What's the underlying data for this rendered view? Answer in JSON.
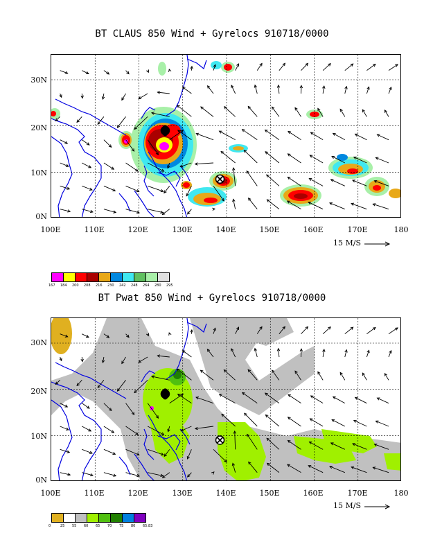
{
  "panels": [
    {
      "title": "BT CLAUS 850 Wind + Gyrelocs 910718/0000",
      "y_labels": [
        "30N",
        "20N",
        "10N",
        "0N"
      ],
      "x_labels": [
        "100E",
        "110E",
        "120E",
        "130E",
        "140E",
        "150E",
        "160E",
        "170E",
        "180"
      ],
      "scale_label": "15 M/S",
      "gyrelocs": [
        {
          "lon": 126,
          "lat": 19
        },
        {
          "lon": 138.5,
          "lat": 8.5
        }
      ],
      "legend": {
        "colors": [
          "#ff00ff",
          "#ffff00",
          "#ff0000",
          "#aa0000",
          "#e8a818",
          "#0088e0",
          "#40e8f0",
          "#60c060",
          "#a8f0a8",
          "#e0e0e0"
        ],
        "ticks": [
          "167",
          "184",
          "200",
          "208",
          "216",
          "230",
          "242",
          "248",
          "264",
          "280",
          "295"
        ]
      }
    },
    {
      "title": "BT Pwat 850 Wind + Gyrelocs 910718/0000",
      "y_labels": [
        "30N",
        "20N",
        "10N",
        "0N"
      ],
      "x_labels": [
        "100E",
        "110E",
        "120E",
        "130E",
        "140E",
        "150E",
        "160E",
        "170E",
        "180"
      ],
      "scale_label": "15 M/S",
      "gyrelocs": [
        {
          "lon": 126,
          "lat": 19
        },
        {
          "lon": 138.5,
          "lat": 9
        }
      ],
      "legend": {
        "colors": [
          "#e0b020",
          "#ffffff",
          "#c0c0c0",
          "#a0f000",
          "#50c010",
          "#208000",
          "#0080e0",
          "#8000c0"
        ],
        "ticks": [
          "0",
          "25",
          "55",
          "60",
          "65",
          "70",
          "75",
          "80",
          "65.83"
        ]
      }
    }
  ]
}
